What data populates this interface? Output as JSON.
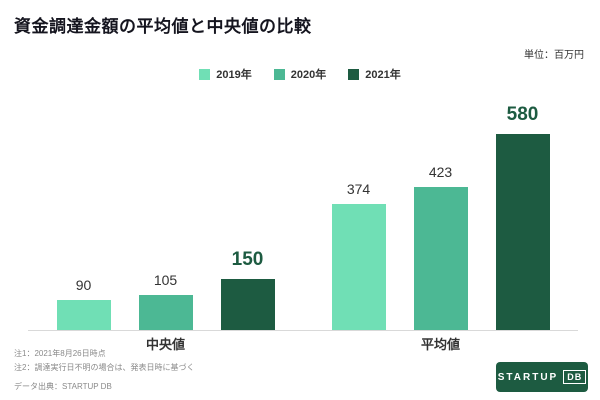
{
  "header": {
    "title": "資金調達金額の平均値と中央値の比較",
    "unit_label": "単位：百万円"
  },
  "legend": [
    {
      "label": "2019年",
      "color": "#70dfb5"
    },
    {
      "label": "2020年",
      "color": "#4cb894"
    },
    {
      "label": "2021年",
      "color": "#1d5b41"
    }
  ],
  "chart_data": {
    "type": "bar",
    "title": "資金調達金額の平均値と中央値の比較",
    "unit": "百万円",
    "categories": [
      "中央値",
      "平均値"
    ],
    "series": [
      {
        "name": "2019年",
        "color": "#70dfb5",
        "values": [
          90,
          374
        ]
      },
      {
        "name": "2020年",
        "color": "#4cb894",
        "values": [
          105,
          423
        ]
      },
      {
        "name": "2021年",
        "color": "#1d5b41",
        "values": [
          150,
          580
        ]
      }
    ],
    "groups": [
      {
        "category": "中央値",
        "values": [
          90,
          105,
          150
        ]
      },
      {
        "category": "平均値",
        "values": [
          374,
          423,
          580
        ]
      }
    ],
    "highlight_series_index": 2,
    "highlight_color": "#1d5b41",
    "ylim": [
      0,
      620
    ],
    "grid": false,
    "legend_position": "top"
  },
  "footer": {
    "note1": "注1：2021年8月26日時点",
    "note2": "注2：調達実行日不明の場合は、発表日時に基づく",
    "source": "データ出典：STARTUP DB",
    "logo_startup": "STARTUP",
    "logo_db": "DB"
  }
}
